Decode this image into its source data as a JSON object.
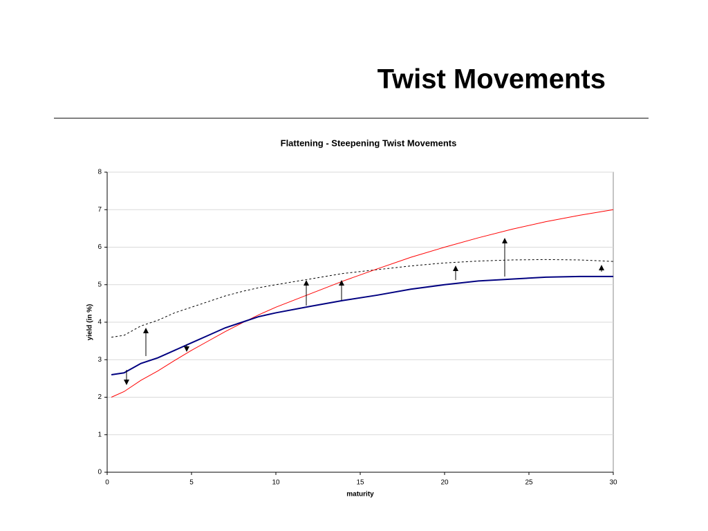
{
  "slide_title": "Twist Movements",
  "chart_data": {
    "type": "line",
    "title": "Flattening - Steepening Twist Movements",
    "xlabel": "maturity",
    "ylabel": "yield (in %)",
    "x": [
      0.25,
      1,
      2,
      3,
      4,
      5,
      6,
      7,
      8,
      9,
      10,
      12,
      14,
      16,
      18,
      20,
      22,
      24,
      26,
      28,
      30
    ],
    "series": [
      {
        "color": "#000000",
        "dashed": true,
        "line_width": 1,
        "values": [
          3.6,
          3.65,
          3.9,
          4.05,
          4.25,
          4.4,
          4.55,
          4.7,
          4.82,
          4.92,
          5.0,
          5.15,
          5.3,
          5.4,
          5.5,
          5.58,
          5.63,
          5.66,
          5.67,
          5.66,
          5.62
        ]
      },
      {
        "color": "#ff0000",
        "dashed": false,
        "line_width": 1,
        "values": [
          2.0,
          2.15,
          2.45,
          2.7,
          2.98,
          3.25,
          3.5,
          3.75,
          3.98,
          4.2,
          4.4,
          4.75,
          5.1,
          5.42,
          5.73,
          6.0,
          6.25,
          6.48,
          6.68,
          6.85,
          7.0
        ]
      },
      {
        "color": "#000080",
        "dashed": false,
        "line_width": 2,
        "values": [
          2.6,
          2.65,
          2.9,
          3.05,
          3.25,
          3.45,
          3.65,
          3.85,
          4.0,
          4.15,
          4.25,
          4.42,
          4.58,
          4.72,
          4.88,
          5.0,
          5.1,
          5.15,
          5.2,
          5.22,
          5.22
        ]
      }
    ],
    "xlim": [
      0,
      30
    ],
    "xticks": [
      0,
      5,
      10,
      15,
      20,
      25,
      30
    ],
    "ylim": [
      0,
      8
    ],
    "yticks": [
      0,
      1,
      2,
      3,
      4,
      5,
      6,
      7,
      8
    ],
    "grid": true
  }
}
